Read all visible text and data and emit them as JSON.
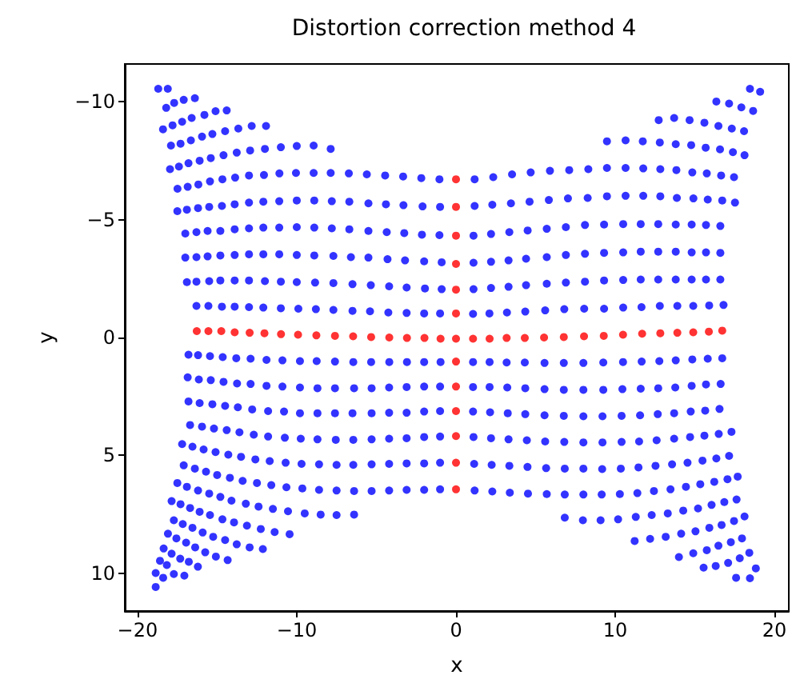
{
  "chart_data": {
    "type": "scatter",
    "title": "Distortion correction method 4",
    "xlabel": "x",
    "ylabel": "y",
    "marker": "circle",
    "xlim": [
      -20.8,
      20.9
    ],
    "ylim": [
      11.6,
      -11.6
    ],
    "xticks": [
      {
        "value": -20,
        "label": "−20"
      },
      {
        "value": -10,
        "label": "−10"
      },
      0,
      10,
      20
    ],
    "yticks": [
      {
        "value": -10,
        "label": "−10"
      },
      {
        "value": -5,
        "label": "−5"
      },
      0,
      5,
      10
    ],
    "series": [
      {
        "color": "#0000ff",
        "x": [
          -18.7,
          -18.1,
          18.46,
          19.1
        ],
        "values": [
          -10.55,
          -10.55,
          -10.55,
          -10.42
        ]
      },
      {
        "color": "#0000ff",
        "x": [
          -18.2,
          -17.7,
          -17.1,
          -16.4,
          16.35,
          17.15,
          17.92,
          18.66
        ],
        "values": [
          -9.74,
          -9.95,
          -10.08,
          -10.15,
          -10.01,
          -9.92,
          -9.76,
          -9.61
        ]
      },
      {
        "color": "#0000ff",
        "x": [
          -18.4,
          -17.8,
          -17.2,
          -16.6,
          -15.8,
          -15.1,
          -14.4,
          12.73,
          13.7,
          14.67,
          15.6,
          16.48,
          17.32,
          18.09
        ],
        "values": [
          -8.83,
          -9.0,
          -9.15,
          -9.31,
          -9.44,
          -9.6,
          -9.63,
          -9.22,
          -9.31,
          -9.22,
          -9.11,
          -8.97,
          -8.86,
          -8.75
        ]
      },
      {
        "color": "#0000ff",
        "x": [
          -17.9,
          -17.3,
          -16.65,
          -15.95,
          -15.3,
          -14.5,
          -13.67,
          -12.83,
          -11.93,
          9.48,
          10.65,
          11.73,
          12.8,
          13.8,
          14.77,
          15.68,
          16.58,
          17.39,
          18.12
        ],
        "values": [
          -8.14,
          -8.22,
          -8.36,
          -8.52,
          -8.63,
          -8.75,
          -8.86,
          -8.97,
          -8.97,
          -8.32,
          -8.36,
          -8.32,
          -8.27,
          -8.2,
          -8.16,
          -8.05,
          -7.98,
          -7.86,
          -7.73
        ]
      },
      {
        "color": "#0000ff",
        "x": [
          -17.96,
          -17.4,
          -16.8,
          -16.1,
          -15.4,
          -14.6,
          -13.77,
          -12.93,
          -12.0,
          -11.0,
          -10.0,
          -8.94,
          -7.87
        ],
        "values": [
          -7.14,
          -7.25,
          -7.39,
          -7.5,
          -7.61,
          -7.73,
          -7.84,
          -7.93,
          -8.0,
          -8.07,
          -8.12,
          -8.14,
          -8.0
        ]
      },
      {
        "color": "#0000ff",
        "x": [
          -17.49,
          -16.85,
          -16.18,
          -15.45,
          -14.67,
          -13.87,
          -13.0,
          -12.06,
          -11.09,
          -10.05,
          -8.94,
          -7.87,
          -6.73,
          -5.6,
          -4.45,
          -3.32,
          -2.18,
          -1.04,
          1.17,
          2.34,
          3.52,
          4.69,
          5.9,
          7.11,
          8.31,
          9.48,
          10.65,
          11.76,
          12.83,
          13.84,
          14.84,
          15.75,
          16.65,
          17.46
        ],
        "values": [
          -6.31,
          -6.39,
          -6.49,
          -6.62,
          -6.71,
          -6.78,
          -6.87,
          -6.89,
          -6.96,
          -6.98,
          -6.98,
          -6.98,
          -6.96,
          -6.92,
          -6.87,
          -6.83,
          -6.76,
          -6.71,
          -6.71,
          -6.8,
          -6.92,
          -7.0,
          -7.07,
          -7.1,
          -7.14,
          -7.19,
          -7.19,
          -7.17,
          -7.14,
          -7.1,
          -7.0,
          -6.96,
          -6.87,
          -6.8
        ]
      },
      {
        "color": "#0000ff",
        "x": [
          -17.5,
          -16.9,
          -16.2,
          -15.5,
          -14.7,
          -13.9,
          -13.0,
          -12.1,
          -11.1,
          -10.0,
          -8.9,
          -7.8,
          -6.7,
          -5.5,
          -4.4,
          -3.3,
          -2.1,
          -1.0,
          1.17,
          2.28,
          3.45,
          4.62,
          5.83,
          7.03,
          8.27,
          9.48,
          10.65,
          11.76,
          12.83,
          13.87,
          14.91,
          15.81,
          16.72,
          17.52
        ],
        "values": [
          -5.36,
          -5.42,
          -5.49,
          -5.54,
          -5.58,
          -5.65,
          -5.72,
          -5.76,
          -5.78,
          -5.81,
          -5.81,
          -5.78,
          -5.76,
          -5.69,
          -5.65,
          -5.61,
          -5.56,
          -5.54,
          -5.58,
          -5.63,
          -5.69,
          -5.76,
          -5.83,
          -5.9,
          -5.92,
          -5.99,
          -6.01,
          -6.01,
          -5.99,
          -5.92,
          -5.9,
          -5.85,
          -5.81,
          -5.72
        ]
      },
      {
        "color": "#0000ff",
        "x": [
          -17.0,
          -16.3,
          -15.6,
          -14.8,
          -13.9,
          -13.0,
          -12.1,
          -11.1,
          -10.0,
          -8.9,
          -7.8,
          -6.7,
          -5.5,
          -4.35,
          -3.25,
          -2.14,
          -1.04,
          1.1,
          2.2,
          3.35,
          4.5,
          5.7,
          6.9,
          8.1,
          9.3,
          10.5,
          11.6,
          12.7,
          13.8,
          14.8,
          15.7,
          16.6
        ],
        "values": [
          -4.41,
          -4.47,
          -4.52,
          -4.52,
          -4.59,
          -4.63,
          -4.66,
          -4.66,
          -4.68,
          -4.66,
          -4.63,
          -4.59,
          -4.52,
          -4.47,
          -4.43,
          -4.36,
          -4.34,
          -4.32,
          -4.39,
          -4.47,
          -4.54,
          -4.61,
          -4.68,
          -4.77,
          -4.79,
          -4.81,
          -4.81,
          -4.81,
          -4.79,
          -4.79,
          -4.77,
          -4.73
        ]
      },
      {
        "color": "#0000ff",
        "x": [
          -17.0,
          -16.3,
          -15.6,
          -14.8,
          -13.9,
          -13.0,
          -12.1,
          -11.1,
          -10.0,
          -8.9,
          -7.7,
          -6.6,
          -5.5,
          -4.3,
          -3.2,
          -2.0,
          -0.9,
          1.1,
          2.2,
          3.3,
          4.4,
          5.7,
          6.9,
          8.1,
          9.3,
          10.5,
          11.6,
          12.7,
          13.8,
          14.8,
          15.7,
          16.6
        ],
        "values": [
          -3.39,
          -3.41,
          -3.44,
          -3.48,
          -3.5,
          -3.53,
          -3.53,
          -3.53,
          -3.5,
          -3.48,
          -3.46,
          -3.41,
          -3.39,
          -3.32,
          -3.27,
          -3.23,
          -3.19,
          -3.17,
          -3.21,
          -3.27,
          -3.34,
          -3.41,
          -3.5,
          -3.55,
          -3.59,
          -3.61,
          -3.64,
          -3.64,
          -3.64,
          -3.61,
          -3.61,
          -3.59
        ]
      },
      {
        "color": "#0000ff",
        "x": [
          -16.9,
          -16.3,
          -15.5,
          -14.8,
          -13.9,
          -13.0,
          -12.0,
          -11.0,
          -10.0,
          -8.85,
          -7.7,
          -6.5,
          -5.35,
          -4.2,
          -3.1,
          -1.95,
          -0.9,
          1.1,
          2.2,
          3.3,
          4.4,
          5.7,
          6.9,
          8.1,
          9.3,
          10.5,
          11.6,
          12.7,
          13.8,
          14.8,
          15.7,
          16.6
        ],
        "values": [
          -2.35,
          -2.37,
          -2.39,
          -2.42,
          -2.42,
          -2.42,
          -2.39,
          -2.37,
          -2.35,
          -2.33,
          -2.31,
          -2.26,
          -2.22,
          -2.17,
          -2.12,
          -2.08,
          -2.05,
          -2.05,
          -2.1,
          -2.15,
          -2.22,
          -2.28,
          -2.33,
          -2.37,
          -2.42,
          -2.44,
          -2.46,
          -2.46,
          -2.46,
          -2.46,
          -2.46,
          -2.46
        ]
      },
      {
        "color": "#0000ff",
        "x": [
          -16.3,
          -15.55,
          -14.7,
          -13.9,
          -13.0,
          -12.1,
          -11.0,
          -9.9,
          -8.8,
          -7.7,
          -6.5,
          -5.4,
          -4.25,
          -3.1,
          -2.0,
          -1.0,
          1.07,
          2.1,
          3.2,
          4.35,
          5.6,
          6.8,
          8.05,
          9.3,
          10.5,
          11.65,
          12.8,
          13.9,
          14.9,
          15.9,
          16.8
        ],
        "values": [
          -1.34,
          -1.34,
          -1.31,
          -1.31,
          -1.29,
          -1.27,
          -1.24,
          -1.22,
          -1.2,
          -1.17,
          -1.13,
          -1.11,
          -1.06,
          -1.04,
          -1.02,
          -1.02,
          -1.0,
          -1.02,
          -1.06,
          -1.1,
          -1.15,
          -1.2,
          -1.22,
          -1.22,
          -1.27,
          -1.29,
          -1.34,
          -1.34,
          -1.34,
          -1.36,
          -1.38
        ]
      },
      {
        "color": "#0000ff",
        "x": [
          -16.8,
          -16.2,
          -15.45,
          -14.65,
          -13.8,
          -12.9,
          -11.9,
          -10.9,
          -9.8,
          -8.75,
          -7.6,
          -6.45,
          -5.33,
          -4.19,
          -3.08,
          -2.0,
          -0.97,
          1.07,
          2.11,
          3.18,
          4.32,
          5.56,
          6.77,
          8.0,
          9.25,
          10.49,
          11.66,
          12.77,
          13.8,
          14.84,
          15.81,
          16.72
        ],
        "values": [
          0.73,
          0.75,
          0.79,
          0.83,
          0.88,
          0.9,
          0.95,
          0.97,
          1.0,
          1.0,
          1.02,
          1.04,
          1.04,
          1.04,
          1.04,
          1.04,
          1.04,
          1.04,
          1.04,
          1.06,
          1.06,
          1.08,
          1.08,
          1.08,
          1.06,
          1.04,
          1.02,
          1.0,
          0.97,
          0.93,
          0.9,
          0.88
        ]
      },
      {
        "color": "#0000ff",
        "x": [
          -16.85,
          -16.15,
          -15.4,
          -14.6,
          -13.75,
          -12.9,
          -11.9,
          -10.9,
          -9.8,
          -8.7,
          -7.6,
          -6.4,
          -5.3,
          -4.2,
          -3.1,
          -2.0,
          -1.0,
          1.07,
          2.11,
          3.22,
          4.35,
          5.56,
          6.77,
          8.0,
          9.25,
          10.45,
          11.6,
          12.7,
          13.77,
          14.8,
          15.7,
          16.62
        ],
        "values": [
          1.69,
          1.78,
          1.81,
          1.88,
          1.95,
          1.97,
          2.05,
          2.08,
          2.12,
          2.15,
          2.15,
          2.15,
          2.15,
          2.12,
          2.1,
          2.08,
          2.08,
          2.1,
          2.1,
          2.12,
          2.15,
          2.19,
          2.22,
          2.22,
          2.22,
          2.19,
          2.17,
          2.15,
          2.12,
          2.05,
          1.99,
          1.97
        ]
      },
      {
        "color": "#0000ff",
        "x": [
          -16.8,
          -16.1,
          -15.3,
          -14.5,
          -13.7,
          -12.8,
          -11.8,
          -10.8,
          -9.8,
          -8.7,
          -7.6,
          -6.5,
          -5.3,
          -4.2,
          -3.1,
          -2.0,
          -1.0,
          1.07,
          2.14,
          3.25,
          4.35,
          5.56,
          6.77,
          8.0,
          9.2,
          10.4,
          11.56,
          12.67,
          13.7,
          14.74,
          15.65,
          16.55
        ],
        "values": [
          2.71,
          2.78,
          2.83,
          2.9,
          2.96,
          3.05,
          3.12,
          3.14,
          3.21,
          3.21,
          3.21,
          3.21,
          3.21,
          3.19,
          3.19,
          3.14,
          3.12,
          3.14,
          3.17,
          3.21,
          3.25,
          3.3,
          3.32,
          3.34,
          3.34,
          3.32,
          3.3,
          3.25,
          3.21,
          3.14,
          3.1,
          3.03
        ]
      },
      {
        "color": "#0000ff",
        "x": [
          -16.7,
          -15.95,
          -15.2,
          -14.4,
          -13.6,
          -12.7,
          -11.8,
          -10.75,
          -9.75,
          -8.7,
          -7.55,
          -6.45,
          -5.3,
          -4.2,
          -3.1,
          -2.0,
          -1.0,
          1.1,
          2.2,
          3.3,
          4.45,
          5.6,
          6.8,
          8.0,
          9.2,
          10.4,
          11.5,
          12.6,
          13.7,
          14.7,
          15.6,
          16.5,
          17.3
        ],
        "values": [
          3.71,
          3.78,
          3.86,
          3.93,
          4.02,
          4.12,
          4.2,
          4.25,
          4.29,
          4.32,
          4.34,
          4.34,
          4.32,
          4.29,
          4.27,
          4.22,
          4.2,
          4.22,
          4.27,
          4.32,
          4.36,
          4.41,
          4.43,
          4.45,
          4.45,
          4.43,
          4.41,
          4.36,
          4.29,
          4.22,
          4.16,
          4.09,
          4.0
        ]
      },
      {
        "color": "#0000ff",
        "x": [
          -17.2,
          -16.55,
          -15.85,
          -15.1,
          -14.3,
          -13.5,
          -12.6,
          -11.7,
          -10.7,
          -9.7,
          -8.6,
          -7.5,
          -6.45,
          -5.3,
          -4.2,
          -3.1,
          -2.0,
          -1.0,
          1.14,
          2.24,
          3.35,
          4.49,
          5.66,
          6.83,
          8.0,
          9.18,
          10.35,
          11.46,
          12.53,
          13.57,
          14.54,
          15.48,
          16.35,
          17.15
        ],
        "values": [
          4.52,
          4.63,
          4.75,
          4.86,
          4.97,
          5.06,
          5.17,
          5.24,
          5.31,
          5.36,
          5.38,
          5.4,
          5.4,
          5.38,
          5.36,
          5.34,
          5.34,
          5.31,
          5.36,
          5.4,
          5.44,
          5.49,
          5.54,
          5.56,
          5.56,
          5.58,
          5.56,
          5.51,
          5.44,
          5.38,
          5.31,
          5.22,
          5.13,
          5.02
        ]
      },
      {
        "color": "#0000ff",
        "x": [
          -17.1,
          -16.4,
          -15.7,
          -15.0,
          -14.2,
          -13.4,
          -12.5,
          -11.6,
          -10.65,
          -9.65,
          -8.6,
          -7.5,
          -6.4,
          -5.3,
          -4.2,
          -3.1,
          -2.0,
          -1.0,
          1.17,
          2.28,
          3.38,
          4.52,
          5.7,
          6.83,
          8.0,
          9.15,
          10.29,
          11.39,
          12.43,
          13.47,
          14.44,
          15.34,
          16.22,
          17.05,
          17.69
        ],
        "values": [
          5.42,
          5.56,
          5.69,
          5.83,
          5.95,
          6.08,
          6.17,
          6.26,
          6.35,
          6.4,
          6.46,
          6.49,
          6.51,
          6.51,
          6.49,
          6.46,
          6.46,
          6.44,
          6.49,
          6.53,
          6.58,
          6.62,
          6.64,
          6.66,
          6.66,
          6.66,
          6.64,
          6.6,
          6.51,
          6.44,
          6.33,
          6.22,
          6.12,
          6.01,
          5.9
        ]
      },
      {
        "color": "#0000ff",
        "x": [
          -17.5,
          -16.9,
          -16.2,
          -15.5,
          -14.8,
          -14.1,
          -13.2,
          -12.4,
          -11.5,
          -10.55,
          -9.5,
          -8.5,
          -7.5,
          -6.4,
          6.83,
          7.97,
          9.08,
          10.18,
          11.29,
          12.29,
          13.3,
          14.27,
          15.2,
          16.05,
          16.85,
          17.62
        ],
        "values": [
          6.17,
          6.33,
          6.49,
          6.62,
          6.76,
          6.92,
          7.05,
          7.17,
          7.27,
          7.37,
          7.46,
          7.51,
          7.53,
          7.51,
          7.64,
          7.75,
          7.75,
          7.71,
          7.61,
          7.53,
          7.46,
          7.34,
          7.25,
          7.1,
          6.98,
          6.87
        ]
      },
      {
        "color": "#0000ff",
        "x": [
          -17.86,
          -17.3,
          -16.7,
          -16.1,
          -15.45,
          -14.67,
          -13.94,
          -13.13,
          -12.26,
          -11.39,
          -10.45,
          11.22,
          12.19,
          13.17,
          14.14,
          15.04,
          15.91,
          16.68,
          17.46,
          18.12
        ],
        "values": [
          6.94,
          7.07,
          7.23,
          7.39,
          7.53,
          7.71,
          7.84,
          7.98,
          8.12,
          8.25,
          8.34,
          8.63,
          8.54,
          8.45,
          8.32,
          8.22,
          8.07,
          7.95,
          7.78,
          7.59
        ]
      },
      {
        "color": "#0000ff",
        "x": [
          -17.72,
          -17.16,
          -16.55,
          -15.91,
          -15.25,
          -14.5,
          -13.77,
          -12.96,
          -12.13,
          14.0,
          14.9,
          15.75,
          16.48,
          17.26,
          17.96
        ],
        "values": [
          7.75,
          7.91,
          8.07,
          8.27,
          8.45,
          8.59,
          8.77,
          8.9,
          8.97,
          9.31,
          9.15,
          9.02,
          8.83,
          8.68,
          8.52
        ]
      },
      {
        "color": "#0000ff",
        "x": [
          -18.09,
          -17.56,
          -16.95,
          -16.38,
          -15.75,
          -15.08,
          -14.34,
          15.55,
          16.31,
          17.09,
          17.82,
          18.42
        ],
        "values": [
          8.32,
          8.52,
          8.7,
          8.9,
          9.11,
          9.29,
          9.44,
          9.76,
          9.69,
          9.56,
          9.36,
          9.13
        ]
      },
      {
        "color": "#0000ff",
        "x": [
          -18.36,
          -17.86,
          -17.32,
          -16.78,
          -16.21,
          18.83
        ],
        "values": [
          8.95,
          9.17,
          9.38,
          9.51,
          9.72,
          9.79
        ]
      },
      {
        "color": "#0000ff",
        "x": [
          -18.59,
          -18.16,
          -18.86,
          -18.39,
          -17.72,
          -17.06,
          -18.86,
          17.59,
          18.46
        ],
        "values": [
          9.47,
          9.65,
          9.99,
          10.19,
          10.03,
          10.1,
          10.58,
          10.19,
          10.21
        ]
      },
      {
        "color": "#ff0000",
        "x": [
          -16.28,
          -15.55,
          -14.74,
          -13.9,
          -12.96,
          -12.03,
          -10.99,
          -9.92,
          -8.77,
          -7.6,
          -6.46,
          -5.33,
          -4.19,
          -3.08,
          -1.98,
          -0.97,
          0,
          1.07,
          2.11,
          3.18,
          4.32,
          5.53,
          6.77,
          8.04,
          9.28,
          10.49,
          11.69,
          12.83,
          13.9,
          14.9,
          15.88,
          16.72,
          0,
          0,
          0,
          0,
          0,
          0,
          0,
          0,
          0,
          0,
          0,
          0
        ],
        "values": [
          -0.27,
          -0.27,
          -0.27,
          -0.22,
          -0.2,
          -0.18,
          -0.14,
          -0.12,
          -0.09,
          -0.07,
          -0.05,
          -0.02,
          0,
          0.02,
          0.02,
          0.05,
          0.05,
          0.05,
          0.05,
          0.02,
          0.02,
          0,
          -0.02,
          -0.05,
          -0.07,
          -0.12,
          -0.16,
          -0.18,
          -0.2,
          -0.22,
          -0.25,
          -0.29,
          -6.71,
          -5.54,
          -4.32,
          -3.12,
          -2.03,
          -1.02,
          1.02,
          2.08,
          3.12,
          4.18,
          5.31,
          6.44
        ]
      }
    ]
  }
}
